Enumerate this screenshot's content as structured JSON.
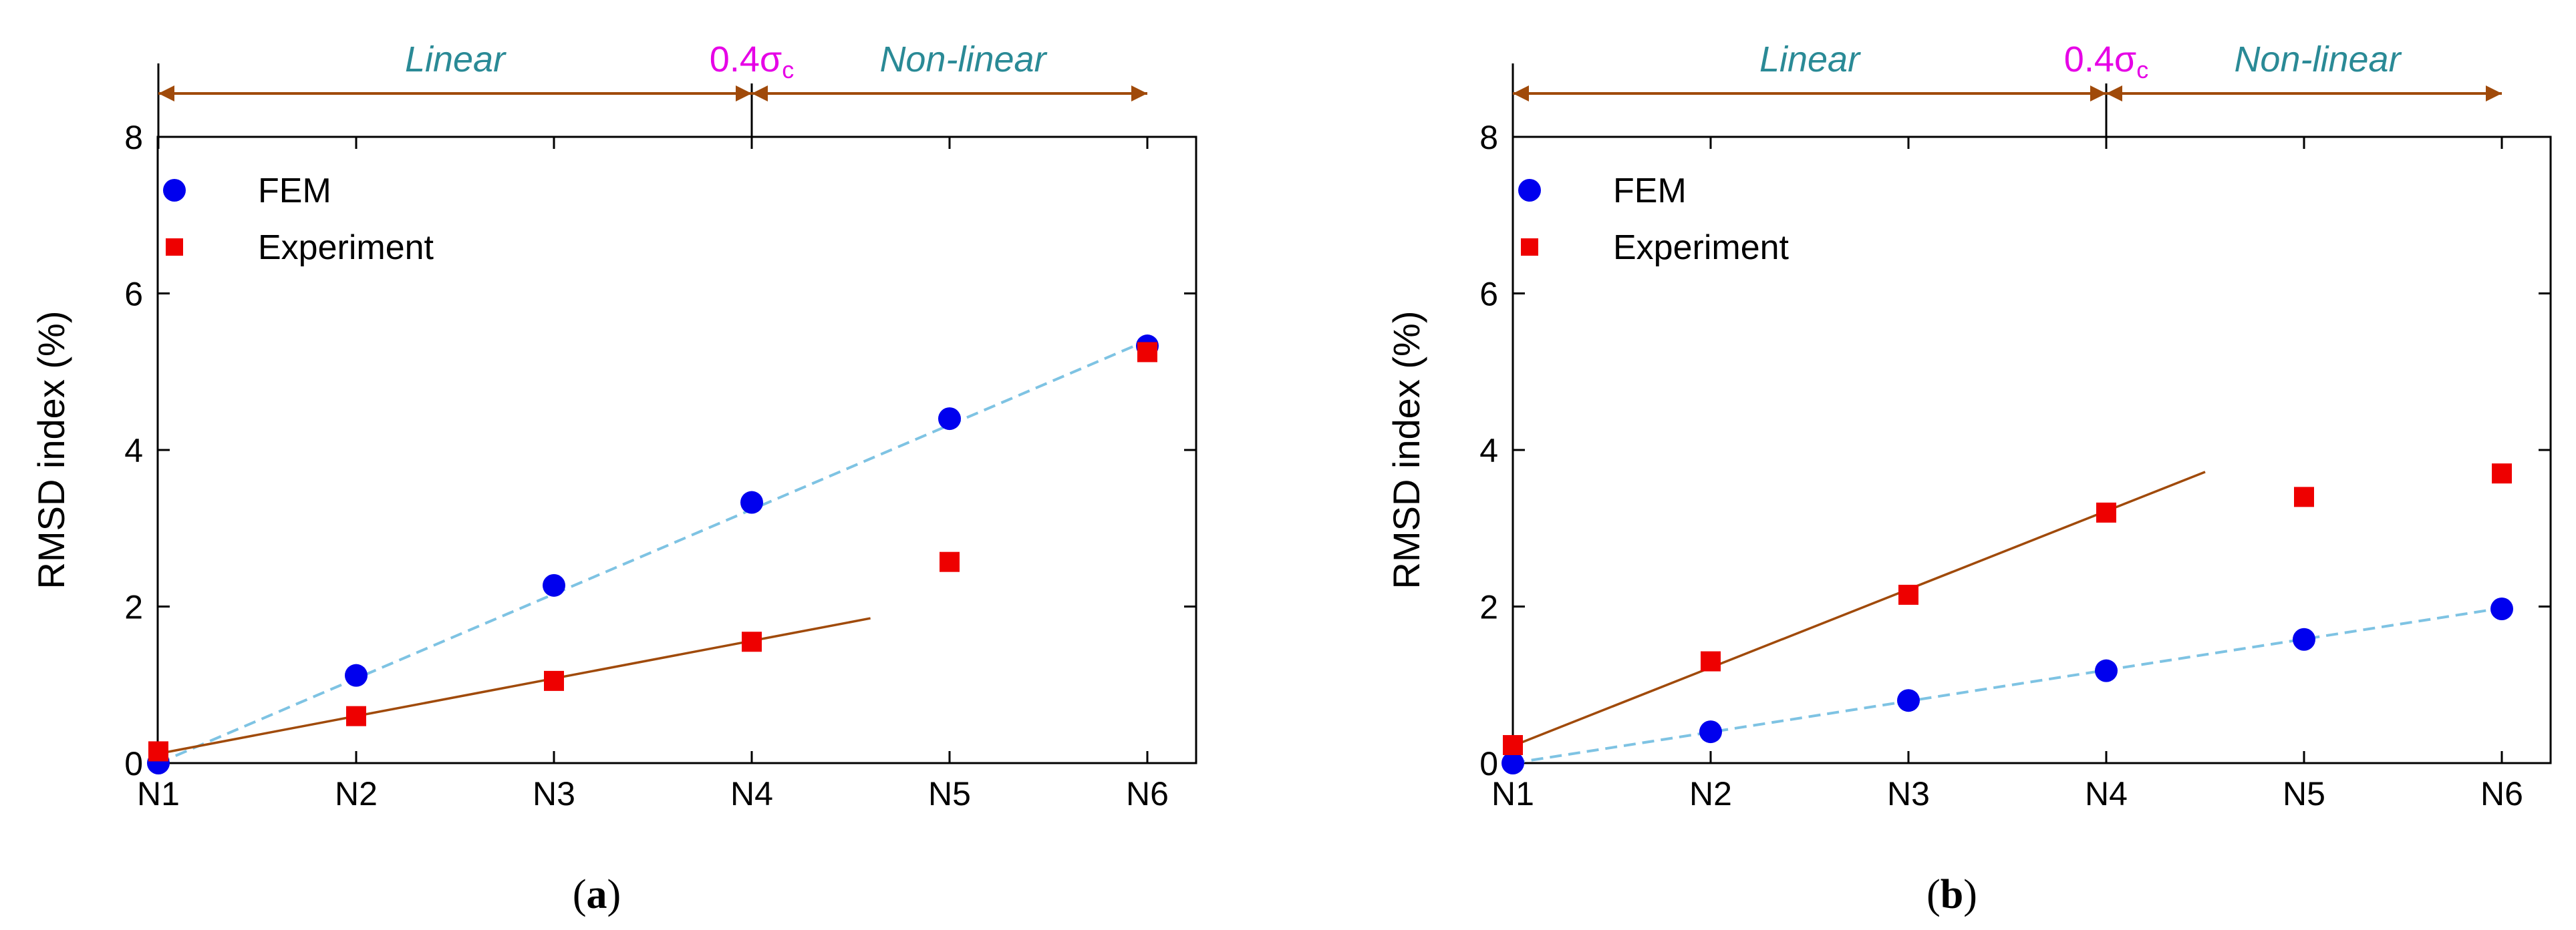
{
  "colors": {
    "fem": "#0000ee",
    "experiment": "#ee0000",
    "fem_fit": "#7ec3e3",
    "exp_fit": "#a04a0a",
    "arrow": "#a04a0a",
    "region_label": "#2a8a96",
    "threshold": "#e600e6",
    "axis": "#000000"
  },
  "chart_data": [
    {
      "type": "scatter",
      "panel_label": "a",
      "ylabel": "RMSD index (%)",
      "xlabel": "",
      "categories": [
        "N1",
        "N2",
        "N3",
        "N4",
        "N5",
        "N6"
      ],
      "ylim": [
        0,
        8
      ],
      "yticks": [
        0,
        2,
        4,
        6,
        8
      ],
      "legend": {
        "placement": "top-left",
        "entries": [
          "FEM",
          "Experiment"
        ]
      },
      "regions": {
        "linear": "Linear",
        "nonlinear": "Non-linear",
        "threshold_base": "0.4σ",
        "threshold_sub": "c",
        "boundary_index": 3
      },
      "series": [
        {
          "name": "FEM",
          "marker": "circle",
          "values": [
            0.0,
            1.12,
            2.27,
            3.33,
            4.4,
            5.33
          ]
        },
        {
          "name": "Experiment",
          "marker": "square",
          "values": [
            0.15,
            0.6,
            1.05,
            1.55,
            2.57,
            5.25
          ]
        }
      ],
      "fits": [
        {
          "series": "FEM",
          "style": "dashed",
          "x_start": 0,
          "x_end": 5,
          "y_start": 0.0,
          "y_end": 5.4
        },
        {
          "series": "Experiment",
          "style": "solid",
          "x_start": 0,
          "x_end": 3.6,
          "y_start": 0.12,
          "y_end": 1.85
        }
      ]
    },
    {
      "type": "scatter",
      "panel_label": "b",
      "ylabel": "RMSD index (%)",
      "xlabel": "",
      "categories": [
        "N1",
        "N2",
        "N3",
        "N4",
        "N5",
        "N6"
      ],
      "ylim": [
        0,
        8
      ],
      "yticks": [
        0,
        2,
        4,
        6,
        8
      ],
      "legend": {
        "placement": "top-left",
        "entries": [
          "FEM",
          "Experiment"
        ]
      },
      "regions": {
        "linear": "Linear",
        "nonlinear": "Non-linear",
        "threshold_base": "0.4σ",
        "threshold_sub": "c",
        "boundary_index": 3
      },
      "series": [
        {
          "name": "FEM",
          "marker": "circle",
          "values": [
            0.0,
            0.4,
            0.8,
            1.18,
            1.58,
            1.97
          ]
        },
        {
          "name": "Experiment",
          "marker": "square",
          "values": [
            0.23,
            1.3,
            2.15,
            3.2,
            3.4,
            3.7
          ]
        }
      ],
      "fits": [
        {
          "series": "FEM",
          "style": "dashed",
          "x_start": 0,
          "x_end": 5,
          "y_start": 0.0,
          "y_end": 1.98
        },
        {
          "series": "Experiment",
          "style": "solid",
          "x_start": 0,
          "x_end": 3.5,
          "y_start": 0.22,
          "y_end": 3.72
        }
      ]
    }
  ]
}
